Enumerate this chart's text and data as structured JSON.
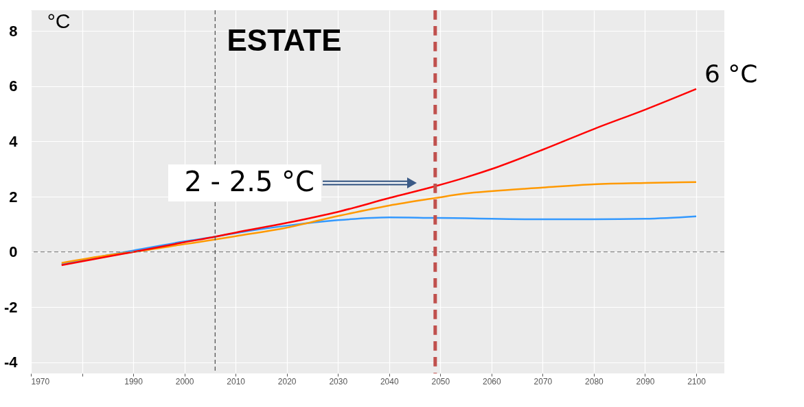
{
  "chart_data": {
    "type": "line",
    "title": "ESTATE",
    "ylabel": "°C",
    "x": [
      1976,
      1985,
      1990,
      2000,
      2006,
      2010,
      2020,
      2030,
      2040,
      2049,
      2055,
      2060,
      2070,
      2080,
      2090,
      2100
    ],
    "series": [
      {
        "color": "#3399ff",
        "values": [
          -0.45,
          -0.12,
          0.05,
          0.38,
          0.55,
          0.68,
          0.95,
          1.15,
          1.25,
          1.23,
          1.22,
          1.2,
          1.18,
          1.18,
          1.2,
          1.29
        ]
      },
      {
        "color": "#ff9900",
        "values": [
          -0.4,
          -0.12,
          0.0,
          0.28,
          0.45,
          0.57,
          0.88,
          1.3,
          1.68,
          1.95,
          2.12,
          2.2,
          2.33,
          2.45,
          2.5,
          2.53
        ]
      },
      {
        "color": "#ff0000",
        "values": [
          -0.48,
          -0.17,
          0.0,
          0.35,
          0.55,
          0.7,
          1.05,
          1.45,
          1.95,
          2.38,
          2.7,
          3.0,
          3.7,
          4.45,
          5.15,
          5.9
        ]
      }
    ],
    "xlim": [
      1970,
      2105.5
    ],
    "ylim": [
      -4.4,
      8.75
    ],
    "xticks": [
      1970,
      {
        "value": 1980,
        "label": null
      },
      1990,
      2000,
      2010,
      2020,
      2030,
      2040,
      2050,
      2060,
      2070,
      2080,
      2090,
      2100
    ],
    "yticks": [
      -4,
      -2,
      0,
      2,
      4,
      6,
      8
    ],
    "grid": true,
    "ref_lines": [
      {
        "axis": "y",
        "value": 0,
        "color": "#808080",
        "line_style": "dashed"
      },
      {
        "axis": "x",
        "value": 2006,
        "color": "#555555",
        "line_style": "dashed"
      },
      {
        "axis": "x",
        "value": 2049,
        "color": "#c0504d",
        "line_style": "dashed"
      }
    ],
    "annotations": [
      "2 - 2.5 °C",
      {
        "text": "6 °C",
        "x": 2100,
        "y": 5.9
      }
    ]
  }
}
